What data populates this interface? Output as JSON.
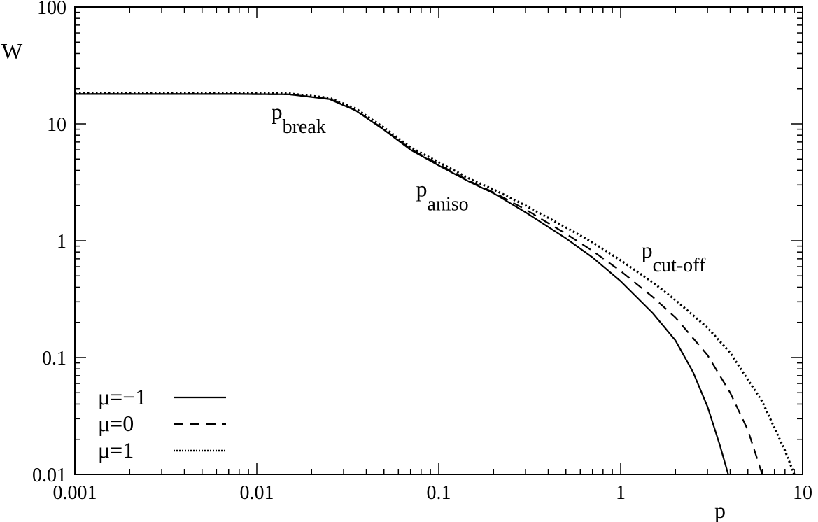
{
  "chart_data": {
    "type": "line",
    "xlabel": "p",
    "ylabel": "W",
    "xscale": "log",
    "yscale": "log",
    "xlim": [
      0.001,
      10
    ],
    "ylim": [
      0.01,
      100
    ],
    "xticks": [
      "0.001",
      "0.01",
      "0.1",
      "1",
      "10"
    ],
    "yticks": [
      "0.01",
      "0.1",
      "1",
      "10",
      "100"
    ],
    "grid": false,
    "legend_position": "bottom-left",
    "annotations": [
      {
        "base": "p",
        "sub": "break",
        "x": 0.012,
        "y": 11
      },
      {
        "base": "p",
        "sub": "aniso",
        "x": 0.075,
        "y": 2.4
      },
      {
        "base": "p",
        "sub": "cut-off",
        "x": 1.3,
        "y": 0.72
      }
    ],
    "series": [
      {
        "name": "μ=−1",
        "style": "solid",
        "x": [
          0.001,
          0.003,
          0.008,
          0.015,
          0.025,
          0.035,
          0.05,
          0.07,
          0.1,
          0.15,
          0.2,
          0.3,
          0.5,
          0.7,
          1.0,
          1.5,
          2.0,
          2.5,
          3.0,
          3.5,
          3.9
        ],
        "y": [
          18,
          18,
          18,
          17.9,
          16.3,
          13.0,
          8.9,
          6.0,
          4.4,
          3.15,
          2.55,
          1.75,
          1.05,
          0.72,
          0.45,
          0.24,
          0.14,
          0.075,
          0.038,
          0.018,
          0.01
        ]
      },
      {
        "name": "μ=0",
        "style": "dashed",
        "x": [
          0.001,
          0.003,
          0.008,
          0.015,
          0.025,
          0.035,
          0.05,
          0.07,
          0.1,
          0.15,
          0.2,
          0.3,
          0.5,
          0.7,
          1.0,
          1.5,
          2.0,
          3.0,
          4.0,
          5.0,
          6.0
        ],
        "y": [
          18,
          18,
          18,
          17.9,
          16.4,
          13.1,
          9.0,
          6.1,
          4.5,
          3.2,
          2.6,
          1.85,
          1.15,
          0.82,
          0.55,
          0.33,
          0.22,
          0.105,
          0.05,
          0.024,
          0.01
        ]
      },
      {
        "name": "μ=1",
        "style": "dotted",
        "x": [
          0.001,
          0.003,
          0.008,
          0.015,
          0.025,
          0.035,
          0.05,
          0.07,
          0.1,
          0.15,
          0.2,
          0.3,
          0.5,
          0.7,
          1.0,
          1.5,
          2.0,
          3.0,
          4.0,
          6.0,
          8.0,
          9.0
        ],
        "y": [
          18.3,
          18.3,
          18.3,
          18.2,
          16.7,
          13.5,
          9.3,
          6.3,
          4.7,
          3.35,
          2.75,
          2.0,
          1.3,
          0.97,
          0.68,
          0.44,
          0.31,
          0.18,
          0.11,
          0.042,
          0.016,
          0.01
        ]
      }
    ]
  }
}
